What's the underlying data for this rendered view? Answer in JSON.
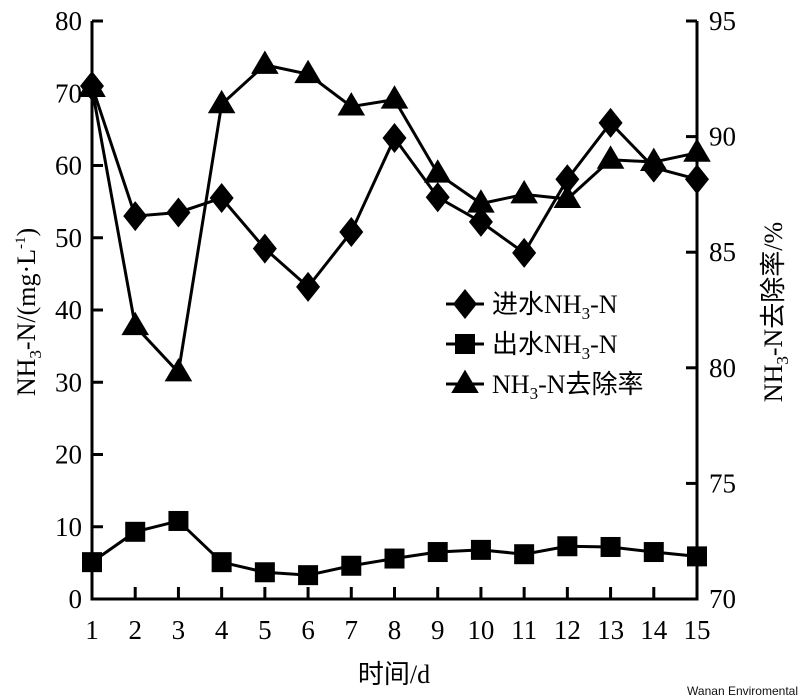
{
  "chart_data": {
    "type": "line",
    "title": "",
    "xlabel": "时间/d",
    "ylabel": "NH3-N/(mg·L-1)",
    "y2label": "NH3-N去除率/%",
    "x": [
      1,
      2,
      3,
      4,
      5,
      6,
      7,
      8,
      9,
      10,
      11,
      12,
      13,
      14,
      15
    ],
    "xlim": [
      1,
      15
    ],
    "ylim": [
      0,
      80
    ],
    "y2lim": [
      70,
      95
    ],
    "yticks": [
      0,
      10,
      20,
      30,
      40,
      50,
      60,
      70,
      80
    ],
    "y2ticks": [
      70,
      75,
      80,
      85,
      90,
      95
    ],
    "grid": false,
    "legend_position": "center-right",
    "series": [
      {
        "name": "进水NH3-N",
        "marker": "diamond",
        "axis": "left",
        "values": [
          71.0,
          53.0,
          53.5,
          55.5,
          48.5,
          43.2,
          50.8,
          63.8,
          55.6,
          52.2,
          47.9,
          58.1,
          65.9,
          59.7,
          58.1
        ]
      },
      {
        "name": "出水NH3-N",
        "marker": "square",
        "axis": "left",
        "values": [
          5.1,
          9.3,
          10.8,
          5.1,
          3.7,
          3.3,
          4.6,
          5.6,
          6.5,
          6.8,
          6.2,
          7.3,
          7.2,
          6.5,
          5.9
        ]
      },
      {
        "name": "NH3-N去除率",
        "marker": "triangle",
        "axis": "right",
        "values": [
          92.1,
          81.8,
          79.8,
          91.4,
          93.1,
          92.7,
          91.3,
          91.6,
          88.4,
          87.1,
          87.5,
          87.3,
          89.0,
          88.9,
          89.3
        ]
      }
    ]
  },
  "axes": {
    "x_label_main": "时间/d",
    "y_left_label": {
      "pre": "NH",
      "sub": "3",
      "post": "-N/(mg·L",
      "sup": "-1",
      "close": ")"
    },
    "y_right_label": {
      "pre": "NH",
      "sub": "3",
      "post": "-N去除率/%"
    }
  },
  "legend": {
    "items": [
      {
        "pre": "进水NH",
        "sub": "3",
        "post": "-N",
        "marker": "diamond"
      },
      {
        "pre": "出水NH",
        "sub": "3",
        "post": "-N",
        "marker": "square"
      },
      {
        "pre": "NH",
        "sub": "3",
        "post": "-N去除率",
        "marker": "triangle"
      }
    ]
  },
  "watermark": "Wanan Enviromental"
}
